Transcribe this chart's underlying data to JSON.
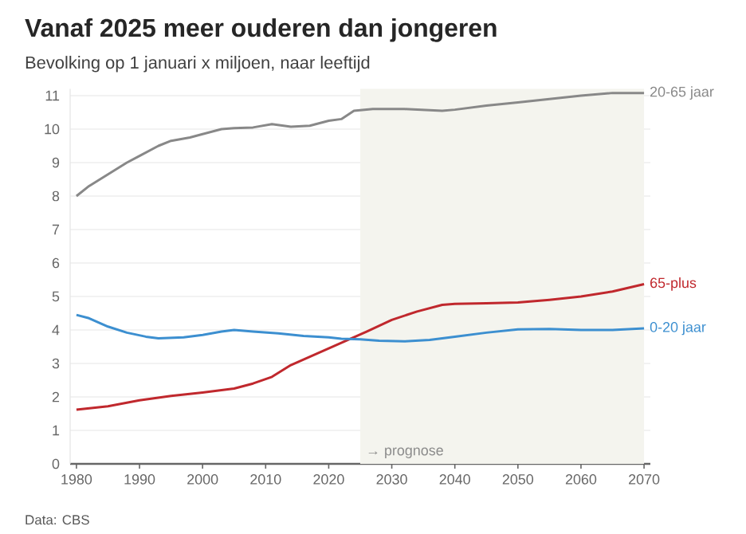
{
  "chart_data": {
    "type": "line",
    "title": "Vanaf 2025 meer ouderen dan jongeren",
    "subtitle": "Bevolking op 1 januari x miljoen, naar leeftijd",
    "series": [
      {
        "name": "20-65 jaar",
        "color": "#888888",
        "x": [
          1980,
          1982,
          1985,
          1988,
          1990,
          1993,
          1995,
          1998,
          2000,
          2003,
          2005,
          2008,
          2011,
          2014,
          2017,
          2020,
          2022,
          2024,
          2027,
          2032,
          2038,
          2040,
          2045,
          2050,
          2055,
          2060,
          2065,
          2070
        ],
        "values": [
          8.0,
          8.3,
          8.65,
          9.0,
          9.2,
          9.5,
          9.65,
          9.75,
          9.85,
          10.0,
          10.03,
          10.05,
          10.15,
          10.07,
          10.1,
          10.25,
          10.3,
          10.55,
          10.6,
          10.6,
          10.55,
          10.58,
          10.7,
          10.8,
          10.9,
          11.0,
          11.08,
          11.08
        ]
      },
      {
        "name": "65-plus",
        "color": "#c0282d",
        "x": [
          1980,
          1985,
          1990,
          1995,
          2000,
          2005,
          2008,
          2011,
          2014,
          2017,
          2020,
          2023,
          2026,
          2030,
          2034,
          2038,
          2040,
          2045,
          2050,
          2055,
          2060,
          2065,
          2070
        ],
        "values": [
          1.62,
          1.72,
          1.9,
          2.03,
          2.13,
          2.25,
          2.4,
          2.6,
          2.95,
          3.2,
          3.45,
          3.7,
          3.95,
          4.3,
          4.55,
          4.75,
          4.78,
          4.8,
          4.82,
          4.9,
          5.0,
          5.15,
          5.37
        ]
      },
      {
        "name": "0-20 jaar",
        "color": "#3c8fd0",
        "x": [
          1980,
          1982,
          1985,
          1988,
          1991,
          1993,
          1997,
          2000,
          2003,
          2005,
          2008,
          2012,
          2016,
          2020,
          2022,
          2025,
          2028,
          2032,
          2036,
          2040,
          2045,
          2050,
          2055,
          2060,
          2065,
          2070
        ],
        "values": [
          4.45,
          4.35,
          4.1,
          3.92,
          3.8,
          3.75,
          3.78,
          3.85,
          3.95,
          4.0,
          3.95,
          3.9,
          3.82,
          3.78,
          3.74,
          3.72,
          3.68,
          3.66,
          3.7,
          3.8,
          3.92,
          4.02,
          4.03,
          4.0,
          4.0,
          4.05
        ]
      }
    ],
    "xlim": [
      1979,
      2071
    ],
    "ylim": [
      0,
      11.2
    ],
    "xticks": [
      1980,
      1990,
      2000,
      2010,
      2020,
      2030,
      2040,
      2050,
      2060,
      2070
    ],
    "yticks": [
      0,
      1,
      2,
      3,
      4,
      5,
      6,
      7,
      8,
      9,
      10,
      11
    ],
    "grid": "y",
    "bands": [
      {
        "axis": "x",
        "from": 2025,
        "to": 2070,
        "label": "→ prognose",
        "color": "#f4f4ee"
      }
    ],
    "annotations": [
      "Data: CBS"
    ]
  }
}
